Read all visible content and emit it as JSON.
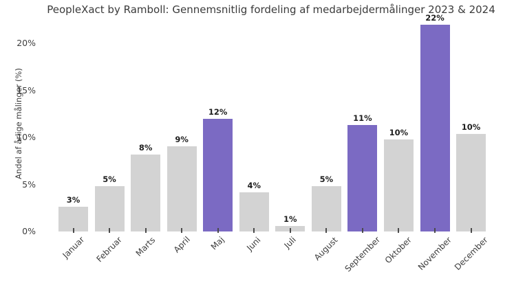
{
  "chart_data": {
    "type": "bar",
    "title": "PeopleXact by Ramboll: Gennemsnitlig fordeling af medarbejdermålinger 2023 & 2024",
    "xlabel": "",
    "ylabel": "Andel af årlige målinger (%)",
    "categories": [
      "Januar",
      "Februar",
      "Marts",
      "April",
      "Maj",
      "Juni",
      "Juli",
      "August",
      "September",
      "Oktober",
      "November",
      "December"
    ],
    "values": [
      2.6,
      4.8,
      8.2,
      9.1,
      12.0,
      4.2,
      0.6,
      4.8,
      11.3,
      9.8,
      22.0,
      10.4
    ],
    "bar_labels": [
      "3%",
      "5%",
      "8%",
      "9%",
      "12%",
      "4%",
      "1%",
      "5%",
      "11%",
      "10%",
      "22%",
      "10%"
    ],
    "highlight_indices": [
      4,
      8,
      10
    ],
    "yticks": [
      {
        "value": 0,
        "label": "0%"
      },
      {
        "value": 5,
        "label": "5%"
      },
      {
        "value": 10,
        "label": "10%"
      },
      {
        "value": 15,
        "label": "15%"
      },
      {
        "value": 20,
        "label": "20%"
      }
    ],
    "ylim": [
      0,
      23.2
    ],
    "grid": false,
    "legend_position": "none",
    "x_tick_rotation_deg": 45,
    "colors": {
      "bar_default": "#d3d3d3",
      "bar_highlight": "#7b6ac3",
      "value_label": "#1f1f1f",
      "axis_text": "#3d3d3d",
      "title_text": "#3a3a3a",
      "tick_mark": "#4a4a4a",
      "background": "#ffffff"
    }
  }
}
